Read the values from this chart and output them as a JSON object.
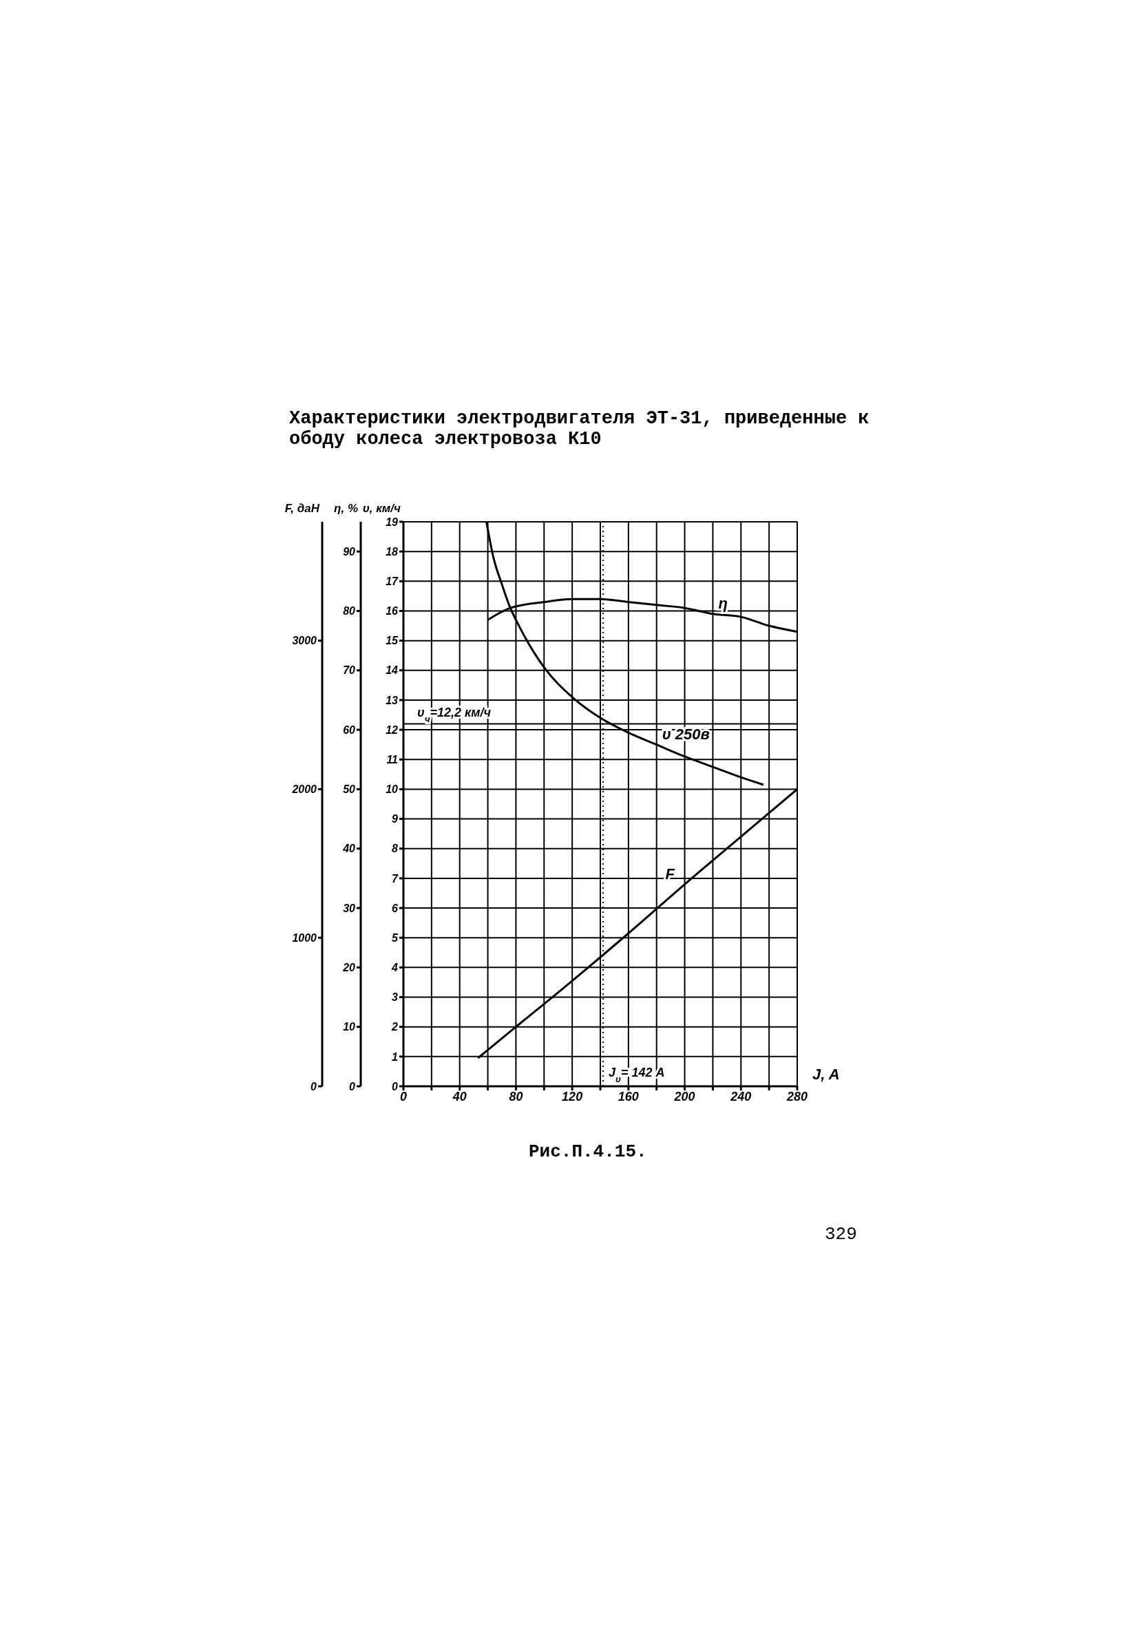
{
  "chart_data": {
    "type": "line",
    "title": "Характеристики электродвигателя ЭТ-31, приведенные к ободу колеса электровоза К10",
    "xlabel": "J, A",
    "ylabel": "υ, км/ч",
    "y2label": "η, %",
    "y3label": "F, даН",
    "xlim": [
      0,
      280
    ],
    "xticks": [
      0,
      {
        "value": 20,
        "label": null
      },
      40,
      {
        "value": 60,
        "label": null
      },
      80,
      {
        "value": 100,
        "label": null
      },
      120,
      {
        "value": 140,
        "label": null
      },
      160,
      {
        "value": 180,
        "label": null
      },
      200,
      {
        "value": 220,
        "label": null
      },
      240,
      {
        "value": 260,
        "label": null
      },
      280
    ],
    "ylim": [
      0,
      19
    ],
    "yticks": [
      0,
      1,
      2,
      3,
      4,
      5,
      6,
      7,
      8,
      9,
      10,
      11,
      12,
      13,
      14,
      15,
      16,
      17,
      18,
      19
    ],
    "y2lim": [
      0,
      95
    ],
    "y2ticks": [
      0,
      10,
      20,
      30,
      40,
      50,
      60,
      70,
      80,
      90
    ],
    "y3lim": [
      0,
      3800
    ],
    "y3ticks": [
      0,
      1000,
      2000,
      3000
    ],
    "grid": true,
    "series": [
      {
        "name": "η",
        "color": "#000000",
        "axis": "y2",
        "x": [
          60,
          76,
          100,
          120,
          140,
          160,
          180,
          200,
          220,
          240,
          260,
          280
        ],
        "values": [
          78.5,
          80.5,
          81.5,
          82,
          82,
          81.5,
          81,
          80.5,
          79.5,
          79,
          77.5,
          76.5
        ]
      },
      {
        "name": "υ 250в",
        "color": "#000000",
        "x": [
          59,
          64,
          70,
          76,
          80,
          100,
          120,
          140,
          160,
          180,
          200,
          220,
          240,
          256
        ],
        "values": [
          19,
          17.8,
          16.9,
          16.1,
          15.7,
          14.1,
          13.1,
          12.4,
          11.9,
          11.5,
          11.1,
          10.75,
          10.4,
          10.15
        ]
      },
      {
        "name": "F",
        "color": "#000000",
        "axis": "y3",
        "x": [
          53,
          80,
          120,
          160,
          200,
          240,
          280
        ],
        "values": [
          190,
          400,
          710,
          1030,
          1360,
          1680,
          2000
        ]
      }
    ],
    "ref_lines": [
      {
        "axis": "y",
        "value": 12.2,
        "label": "υ$_{ч}$=12,2 км/ч",
        "line_style": "solid"
      },
      {
        "axis": "x",
        "value": 142,
        "label": "J$_{υ}$= 142 A",
        "line_style": "dotted"
      }
    ],
    "annotations": [
      "Рис.П.4.15.",
      "329"
    ]
  }
}
